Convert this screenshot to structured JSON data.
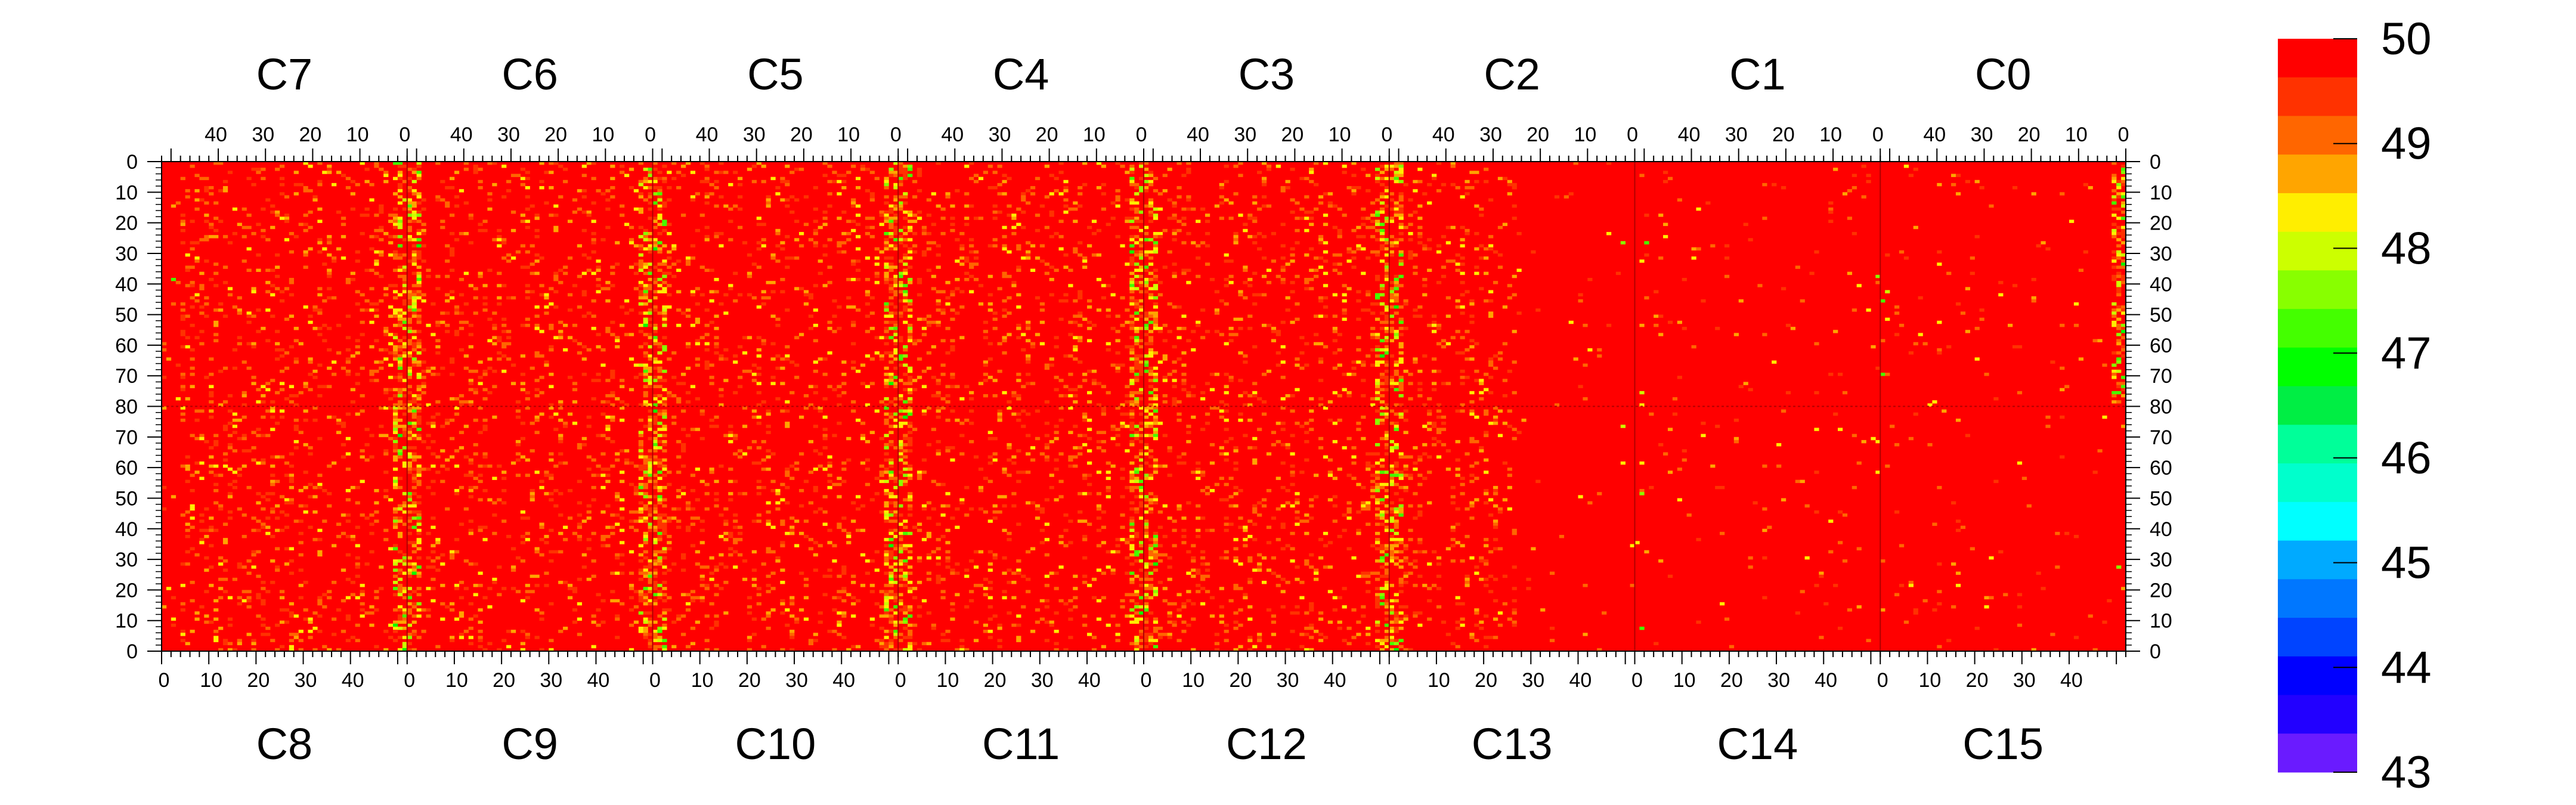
{
  "chart_data": {
    "type": "heatmap",
    "title": "",
    "xlabel": "",
    "ylabel": "",
    "top_chip_labels": [
      "C7",
      "C6",
      "C5",
      "C4",
      "C3",
      "C2",
      "C1",
      "C0"
    ],
    "bottom_chip_labels": [
      "C8",
      "C9",
      "C10",
      "C11",
      "C12",
      "C13",
      "C14",
      "C15"
    ],
    "columns_per_chip": 52,
    "rows_per_half": 80,
    "top_axis_ticks": [
      "40",
      "30",
      "20",
      "10",
      "0"
    ],
    "bottom_axis_ticks": [
      "0",
      "10",
      "20",
      "30",
      "40"
    ],
    "y_axis_ticks_top_half": [
      "0",
      "10",
      "20",
      "30",
      "40",
      "50",
      "60",
      "70",
      "80"
    ],
    "y_axis_ticks_bottom_half": [
      "70",
      "60",
      "50",
      "40",
      "30",
      "20",
      "10",
      "0"
    ],
    "zrange": [
      43,
      50
    ],
    "colorbar_tick_labels": [
      "50",
      "49",
      "48",
      "47",
      "46",
      "45",
      "44",
      "43"
    ],
    "colorbar_colors": [
      "#ff0000",
      "#ff3200",
      "#ff6600",
      "#ffa500",
      "#ffee00",
      "#ccff00",
      "#88ff00",
      "#44ff00",
      "#00ff00",
      "#00ee44",
      "#00ff99",
      "#00ffcc",
      "#00ffff",
      "#00aaff",
      "#0077ff",
      "#0044ff",
      "#0000ff",
      "#2200ff",
      "#6a1bff"
    ],
    "dominant_value": 50,
    "noisy_column_groups_near": [
      0,
      52
    ],
    "notes_visible_pattern": "mostly 50 everywhere; sparser noise in chips C1,C0,C14,C15; denser bands near chip edges"
  }
}
